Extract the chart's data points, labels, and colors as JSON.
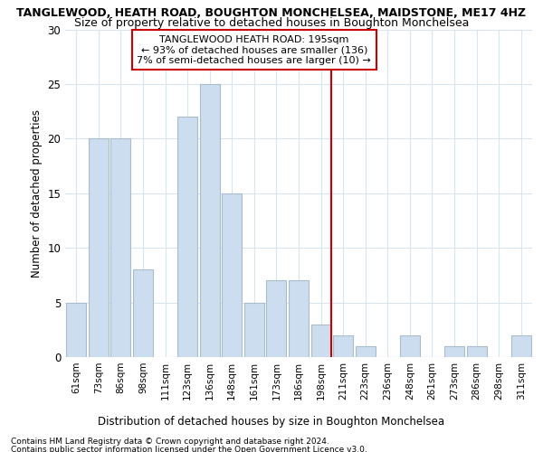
{
  "title": "TANGLEWOOD, HEATH ROAD, BOUGHTON MONCHELSEA, MAIDSTONE, ME17 4HZ",
  "subtitle": "Size of property relative to detached houses in Boughton Monchelsea",
  "xlabel": "Distribution of detached houses by size in Boughton Monchelsea",
  "ylabel": "Number of detached properties",
  "footnote1": "Contains HM Land Registry data © Crown copyright and database right 2024.",
  "footnote2": "Contains public sector information licensed under the Open Government Licence v3.0.",
  "categories": [
    "61sqm",
    "73sqm",
    "86sqm",
    "98sqm",
    "111sqm",
    "123sqm",
    "136sqm",
    "148sqm",
    "161sqm",
    "173sqm",
    "186sqm",
    "198sqm",
    "211sqm",
    "223sqm",
    "236sqm",
    "248sqm",
    "261sqm",
    "273sqm",
    "286sqm",
    "298sqm",
    "311sqm"
  ],
  "values": [
    5,
    20,
    20,
    8,
    0,
    22,
    25,
    15,
    5,
    7,
    7,
    3,
    2,
    1,
    0,
    2,
    0,
    1,
    1,
    0,
    2
  ],
  "bar_color": "#ccddef",
  "bar_edge_color": "#aabbcc",
  "vline_x_index": 11,
  "vline_color": "#cc0000",
  "annotation_title": "TANGLEWOOD HEATH ROAD: 195sqm",
  "annotation_line1": "← 93% of detached houses are smaller (136)",
  "annotation_line2": "7% of semi-detached houses are larger (10) →",
  "annotation_box_facecolor": "#ffffff",
  "annotation_box_edgecolor": "#cc0000",
  "ylim": [
    0,
    30
  ],
  "yticks": [
    0,
    5,
    10,
    15,
    20,
    25,
    30
  ],
  "background_color": "#ffffff",
  "grid_color": "#d8e4ee",
  "title_fontsize": 9,
  "subtitle_fontsize": 9
}
